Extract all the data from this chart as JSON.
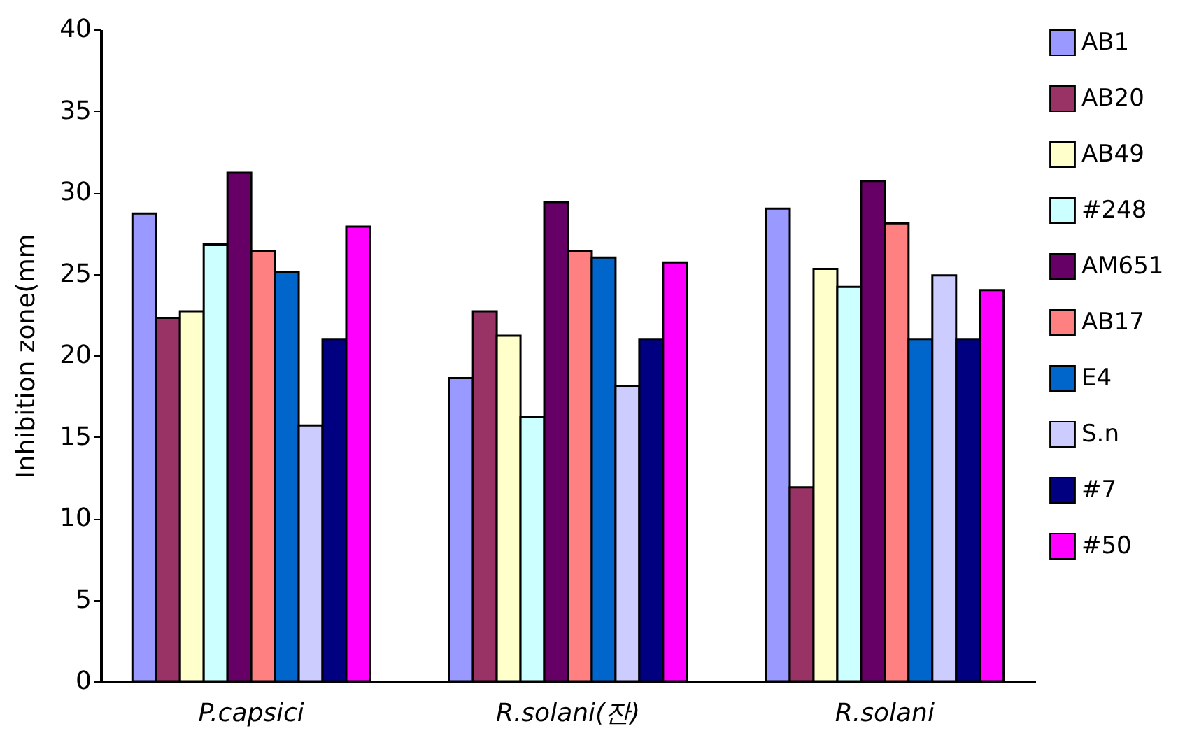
{
  "chart_data": {
    "type": "bar",
    "ylabel": "Inhibition zone(mm",
    "categories": [
      "P.capsici",
      "R.solani(잔)",
      "R.solani"
    ],
    "series": [
      {
        "name": "AB1",
        "color": "#9999ff",
        "values": [
          28.7,
          18.6,
          29.0
        ]
      },
      {
        "name": "AB20",
        "color": "#993366",
        "values": [
          22.3,
          22.7,
          11.9
        ]
      },
      {
        "name": "AB49",
        "color": "#ffffcc",
        "values": [
          22.7,
          21.2,
          25.3
        ]
      },
      {
        "name": "#248",
        "color": "#ccffff",
        "values": [
          26.8,
          16.2,
          24.2
        ]
      },
      {
        "name": "AM651",
        "color": "#660066",
        "values": [
          31.2,
          29.4,
          30.7
        ]
      },
      {
        "name": "AB17",
        "color": "#ff8080",
        "values": [
          26.4,
          26.4,
          28.1
        ]
      },
      {
        "name": "E4",
        "color": "#0066cc",
        "values": [
          25.1,
          26.0,
          21.0
        ]
      },
      {
        "name": "S.n",
        "color": "#ccccff",
        "values": [
          15.7,
          18.1,
          24.9
        ]
      },
      {
        "name": "#7",
        "color": "#000080",
        "values": [
          21.0,
          21.0,
          21.0
        ]
      },
      {
        "name": "#50",
        "color": "#ff00ff",
        "values": [
          27.9,
          25.7,
          24.0
        ]
      }
    ],
    "ylim": [
      0,
      40
    ],
    "yticks": [
      0,
      5,
      10,
      15,
      20,
      25,
      30,
      35,
      40
    ],
    "grid": false,
    "legend": "right"
  }
}
